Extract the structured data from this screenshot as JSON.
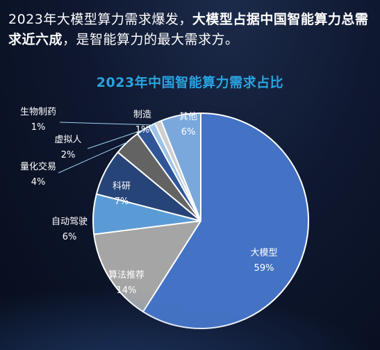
{
  "headline": {
    "part1": "2023年大模型算力需求爆发，",
    "part2": "大模型占据中国智能算力总需求近六成",
    "part3": "，是智能算力的最大需求方。"
  },
  "chart_data": {
    "type": "pie",
    "title": "2023年中国智能算力需求占比",
    "categories": [
      "大模型",
      "算法推荐",
      "自动驾驶",
      "科研",
      "量化交易",
      "虚拟人",
      "生物制药",
      "制造",
      "其他"
    ],
    "values": [
      59,
      14,
      6,
      7,
      4,
      2,
      1,
      1,
      6
    ],
    "value_labels": [
      "59%",
      "14%",
      "6%",
      "7%",
      "4%",
      "2%",
      "1%",
      "1%",
      "6%"
    ],
    "colors": [
      "#4472c4",
      "#a5a5a5",
      "#5b9bd5",
      "#264478",
      "#636363",
      "#2f5597",
      "#9dc3e6",
      "#cfcfcf",
      "#7aa8dd"
    ]
  }
}
